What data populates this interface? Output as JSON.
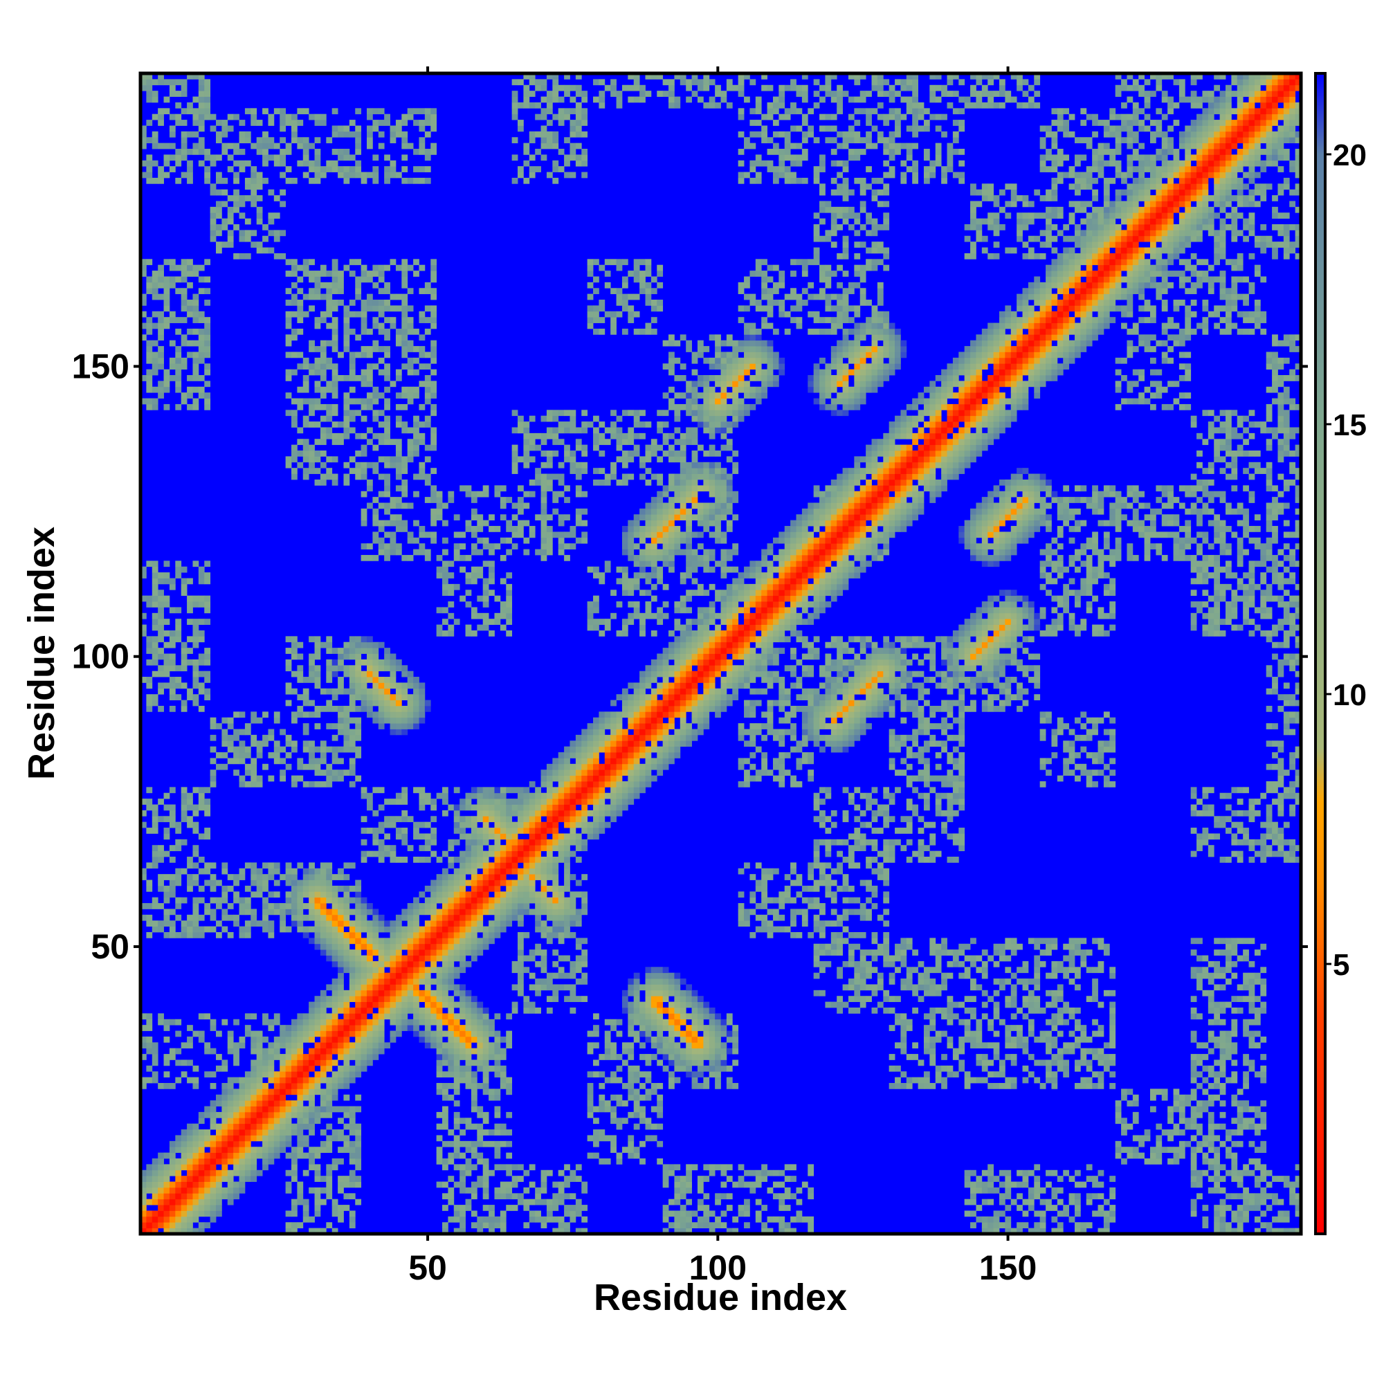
{
  "chart_data": {
    "type": "heatmap",
    "title": "",
    "xlabel": "Residue index",
    "ylabel": "Residue index",
    "xlim": [
      1,
      200
    ],
    "ylim": [
      1,
      200
    ],
    "x_ticks": [
      50,
      100,
      150
    ],
    "y_ticks": [
      50,
      100,
      150
    ],
    "colorbar": {
      "range": [
        0,
        21.5
      ],
      "ticks": [
        5,
        10,
        15,
        20
      ],
      "stops": [
        {
          "value": 0,
          "color": "#ff0000"
        },
        {
          "value": 4,
          "color": "#ff4000"
        },
        {
          "value": 6.5,
          "color": "#ff8c00"
        },
        {
          "value": 8,
          "color": "#ffa500"
        },
        {
          "value": 9,
          "color": "#a8b878"
        },
        {
          "value": 15,
          "color": "#7fa88e"
        },
        {
          "value": 20,
          "color": "#5a7fa8"
        },
        {
          "value": 21.5,
          "color": "#0000ff"
        }
      ],
      "background_color": "#0000ff"
    },
    "description_of_structure": "",
    "contact_features": [
      {
        "kind": "main-diagonal",
        "from": [
          1,
          1
        ],
        "to": [
          200,
          200
        ],
        "value": 1
      },
      {
        "kind": "antiparallel",
        "center": [
          36,
          53
        ],
        "half_length": 7,
        "value": 6
      },
      {
        "kind": "antiparallel",
        "center": [
          42,
          95
        ],
        "half_length": 4,
        "value": 7
      },
      {
        "kind": "antiparallel",
        "center": [
          53,
          38
        ],
        "half_length": 7,
        "value": 6
      },
      {
        "kind": "antiparallel",
        "center": [
          62,
          70
        ],
        "half_length": 3,
        "value": 7
      },
      {
        "kind": "antiparallel",
        "center": [
          70,
          60
        ],
        "half_length": 3,
        "value": 7
      },
      {
        "kind": "antiparallel",
        "center": [
          93,
          37
        ],
        "half_length": 5,
        "value": 6
      },
      {
        "kind": "parallel",
        "center": [
          93,
          124
        ],
        "half_length": 6,
        "value": 7
      },
      {
        "kind": "parallel",
        "center": [
          124,
          93
        ],
        "half_length": 6,
        "value": 7
      },
      {
        "kind": "parallel",
        "center": [
          150,
          124
        ],
        "half_length": 4,
        "value": 7
      },
      {
        "kind": "parallel",
        "center": [
          124,
          150
        ],
        "half_length": 4,
        "value": 7
      },
      {
        "kind": "parallel",
        "center": [
          103,
          147
        ],
        "half_length": 4,
        "value": 7
      },
      {
        "kind": "parallel",
        "center": [
          147,
          103
        ],
        "half_length": 4,
        "value": 7
      }
    ]
  }
}
